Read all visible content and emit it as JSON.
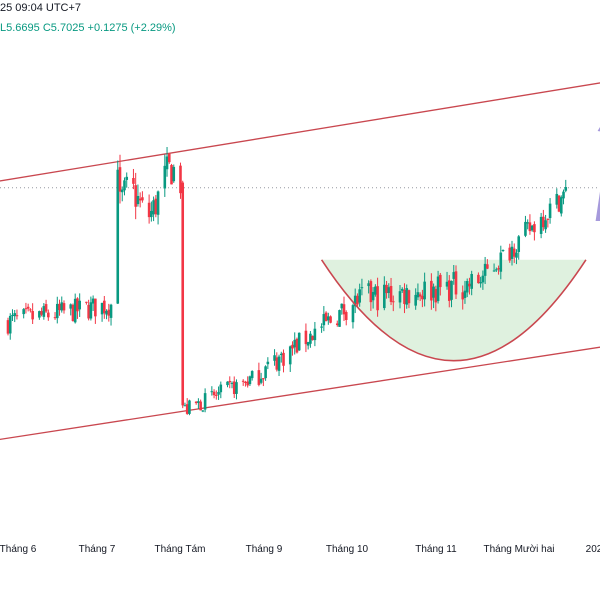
{
  "header": {
    "timestamp_fragment": "25 09:04 UTC+7",
    "ohlc": [
      {
        "label": "L",
        "value": "5.6695"
      },
      {
        "label": "C",
        "value": "5.7025"
      },
      {
        "label": "",
        "value": "+0.1275 (+2.29%)"
      }
    ]
  },
  "colors": {
    "up": "#089981",
    "down": "#f23645",
    "trendline": "#c9474f",
    "cup_fill": "#dff1df",
    "arrow": "#9c8fd8",
    "dotted": "#9598a1"
  },
  "chart_data": {
    "type": "candlestick",
    "x_ticks": [
      "Tháng 6",
      "Tháng 7",
      "Tháng Tám",
      "Tháng 9",
      "Tháng 10",
      "Tháng 11",
      "Tháng Mười hai",
      "202"
    ],
    "y_range": [
      4.55,
      6.2
    ],
    "current_price": 5.7025,
    "segments": [
      {
        "from_day": 0,
        "to_day": 48,
        "start": 5.25,
        "end": 5.31,
        "vol": 0.04
      },
      {
        "from_day": 48,
        "to_day": 50,
        "start": 5.31,
        "end": 5.8,
        "vol": 0.05
      },
      {
        "from_day": 50,
        "to_day": 78,
        "start": 5.62,
        "end": 5.72,
        "vol": 0.06
      },
      {
        "from_day": 78,
        "to_day": 79,
        "start": 5.72,
        "end": 4.95,
        "vol": 0.02
      },
      {
        "from_day": 79,
        "to_day": 110,
        "start": 4.95,
        "end": 5.06,
        "vol": 0.03
      },
      {
        "from_day": 110,
        "to_day": 158,
        "start": 5.06,
        "end": 5.33,
        "vol": 0.04
      },
      {
        "from_day": 158,
        "to_day": 210,
        "start": 5.33,
        "end": 5.38,
        "vol": 0.05
      },
      {
        "from_day": 210,
        "to_day": 252,
        "start": 5.38,
        "end": 5.7,
        "vol": 0.04
      }
    ],
    "trendlines": [
      {
        "name": "upper",
        "p1": {
          "day": -8,
          "price": 5.72
        },
        "p2": {
          "day": 268,
          "price": 6.06
        }
      },
      {
        "name": "lower",
        "p1": {
          "day": -8,
          "price": 4.85
        },
        "p2": {
          "day": 268,
          "price": 5.17
        }
      }
    ],
    "cup": {
      "start_day": 140,
      "end_day": 258,
      "rim_price": 5.46,
      "bottom_price": 5.12
    },
    "arrows": [
      {
        "day": 265,
        "price": 5.86
      }
    ]
  }
}
